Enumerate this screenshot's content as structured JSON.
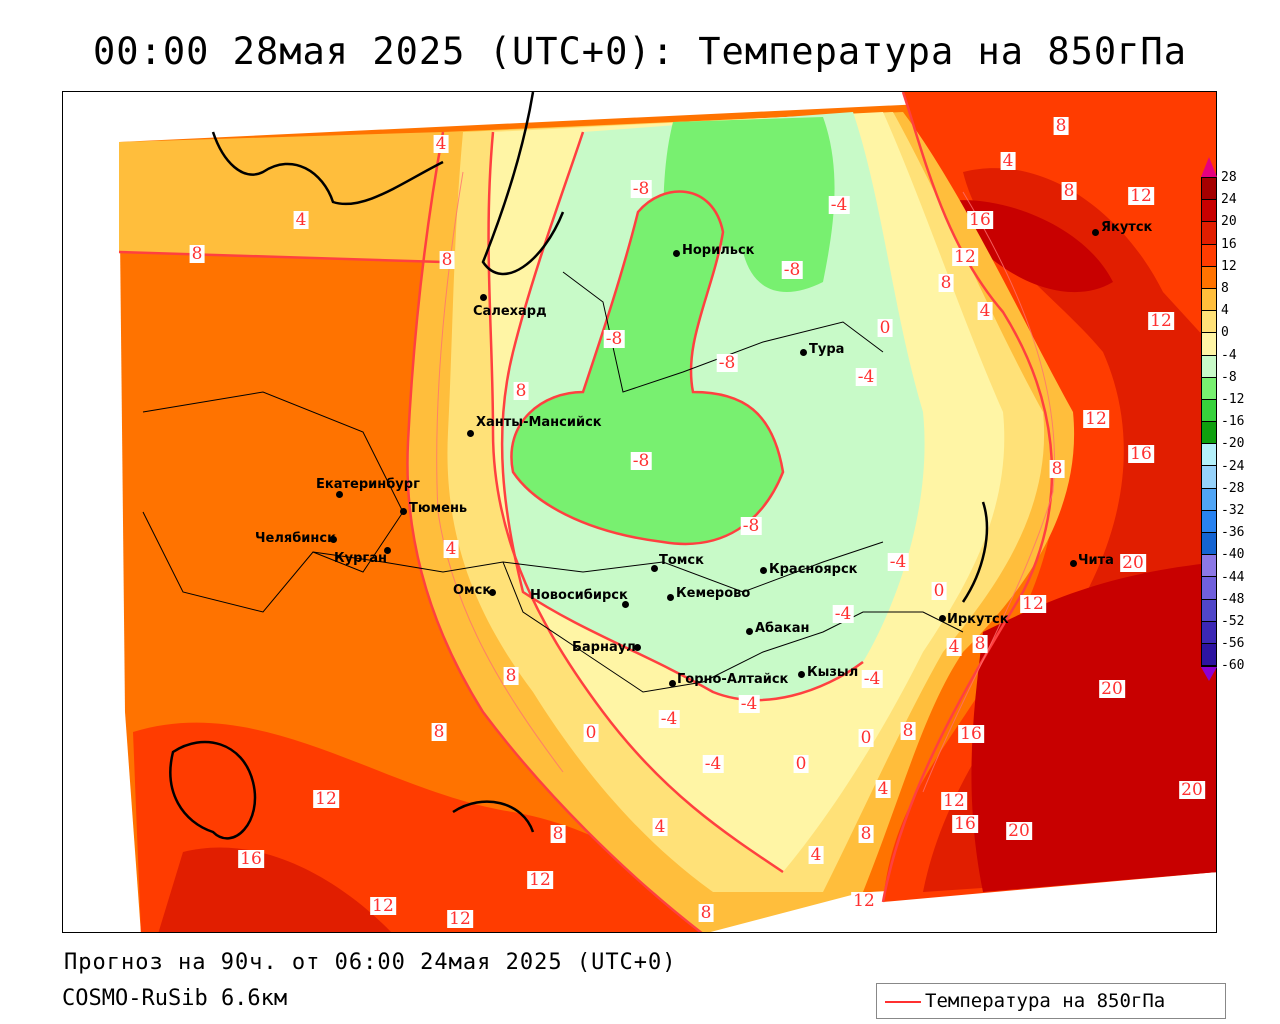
{
  "title": "00:00 28мая 2025 (UTC+0): Температура на 850гПа",
  "footer": {
    "forecast": "Прогноз на 90ч. от 06:00 24мая 2025 (UTC+0)",
    "model": "COSMO-RuSib 6.6км"
  },
  "legend": {
    "label": "Температура на 850гПа",
    "line_color": "#ff3030"
  },
  "colorbar": {
    "ticks": [
      "28",
      "24",
      "20",
      "16",
      "12",
      "8",
      "4",
      "0",
      "-4",
      "-8",
      "-12",
      "-16",
      "-20",
      "-24",
      "-28",
      "-32",
      "-36",
      "-40",
      "-44",
      "-48",
      "-52",
      "-56",
      "-60"
    ],
    "colors": [
      "#a50000",
      "#c80000",
      "#e11e00",
      "#ff3c00",
      "#ff7300",
      "#ffbe3c",
      "#ffe178",
      "#fff5a5",
      "#c8fac8",
      "#78f070",
      "#37d23c",
      "#0fa00f",
      "#b4f0fa",
      "#96d2fa",
      "#50a5f5",
      "#2882f0",
      "#1464d2",
      "#8c78e6",
      "#7060dc",
      "#5046c8",
      "#3c28b4",
      "#2d14a0"
    ],
    "top_color": "#e6007f",
    "bottom_color": "#8c00d2"
  },
  "cities": [
    "Норильск",
    "Салехард",
    "Тура",
    "Ханты-Мансийск",
    "Якутск",
    "Екатеринбург",
    "Тюмень",
    "Челябинск",
    "Курган",
    "Томск",
    "Красноярск",
    "Омск",
    "Новосибирск",
    "Кемерово",
    "Абакан",
    "Барнаул",
    "Иркутск",
    "Чита",
    "Горно-Алтайск",
    "Кызыл"
  ],
  "contour_labels": [
    "4",
    "8",
    "8",
    "4",
    "-8",
    "-4",
    "-8",
    "8",
    "16",
    "12",
    "8",
    "12",
    "-8",
    "-8",
    "8",
    "4",
    "-4",
    "4",
    "-8",
    "12",
    "16",
    "8",
    "4",
    "-8",
    "-4",
    "20",
    "-4",
    "-4",
    "8",
    "0",
    "4",
    "12",
    "8",
    "-4",
    "-4",
    "8",
    "0",
    "-4",
    "0",
    "4",
    "16",
    "20",
    "8",
    "0",
    "12",
    "16",
    "12",
    "4",
    "8",
    "12",
    "20",
    "12",
    "0",
    "4",
    "12",
    "16",
    "20",
    "8",
    "12",
    "12",
    "8",
    "8"
  ]
}
